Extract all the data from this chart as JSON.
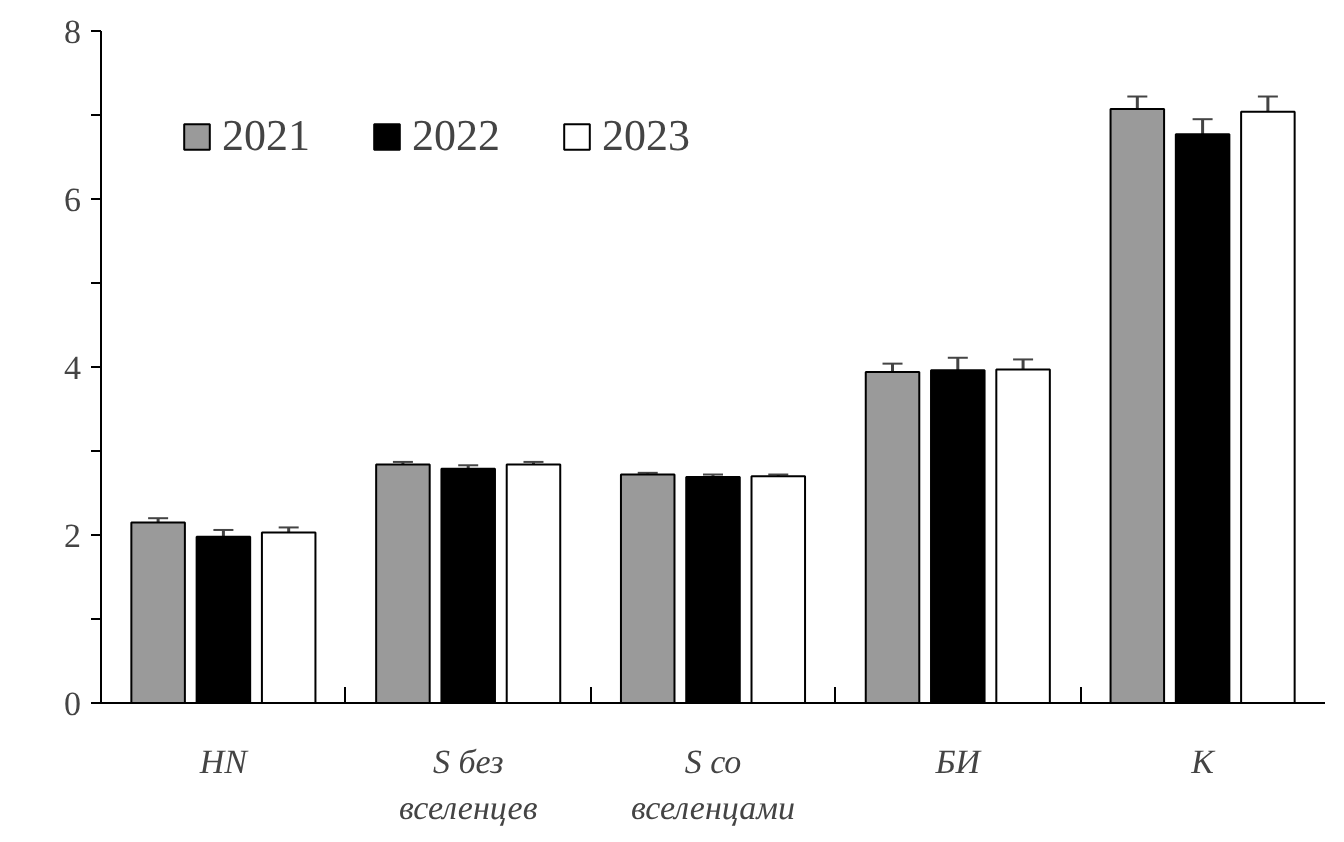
{
  "chart_data": {
    "type": "bar",
    "categories": [
      "HN",
      "S без\nвселенцев",
      "S со\nвселенцами",
      "БИ",
      "K"
    ],
    "series": [
      {
        "name": "2021",
        "color": "#9a9a9a",
        "values": [
          2.15,
          2.84,
          2.72,
          3.94,
          7.07
        ],
        "errors": [
          0.05,
          0.03,
          0.02,
          0.1,
          0.15
        ]
      },
      {
        "name": "2022",
        "color": "#000000",
        "values": [
          1.98,
          2.79,
          2.69,
          3.96,
          6.77
        ],
        "errors": [
          0.08,
          0.04,
          0.03,
          0.15,
          0.18
        ]
      },
      {
        "name": "2023",
        "color": "#ffffff",
        "values": [
          2.03,
          2.84,
          2.7,
          3.97,
          7.04
        ],
        "errors": [
          0.06,
          0.03,
          0.02,
          0.12,
          0.18
        ]
      }
    ],
    "ylim": [
      0,
      8
    ],
    "yticks": [
      0,
      {
        "value": 1,
        "label": null
      },
      2,
      {
        "value": 3,
        "label": null
      },
      4,
      {
        "value": 5,
        "label": null
      },
      6,
      {
        "value": 7,
        "label": null
      },
      8
    ],
    "grid": false,
    "legend": "top left"
  }
}
